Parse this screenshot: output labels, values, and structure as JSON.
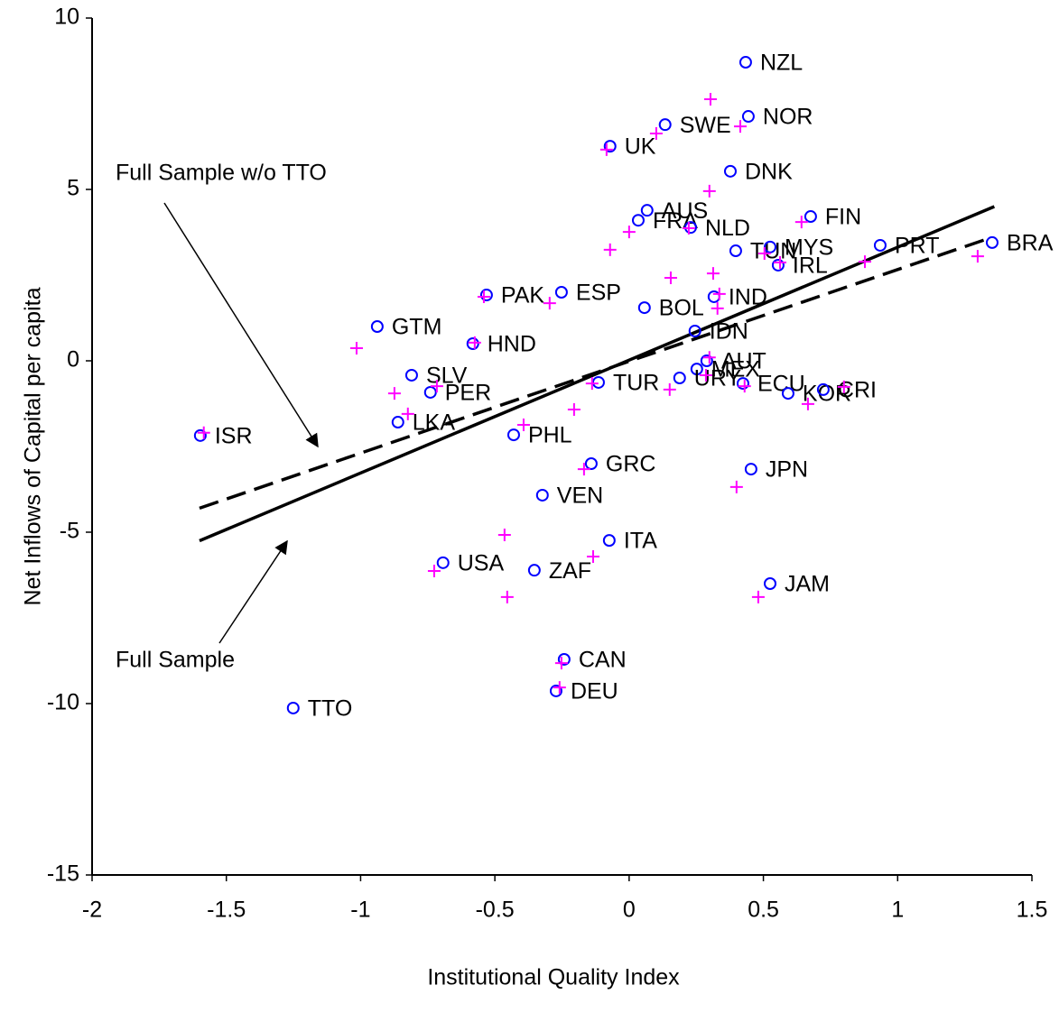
{
  "chart_data": {
    "type": "scatter",
    "x_label": "Institutional Quality Index",
    "y_label": "Net Inflows of Capital per capita",
    "xlim": [
      -2,
      1.5
    ],
    "ylim": [
      -15,
      10
    ],
    "xticks": [
      -2,
      -1.5,
      -1,
      -0.5,
      0,
      0.5,
      1,
      1.5
    ],
    "yticks": [
      -15,
      -10,
      -5,
      0,
      5,
      10
    ],
    "grid": false,
    "series": [
      {
        "color": "#0000ff",
        "marker": "circle",
        "labels": [
          "NZL",
          "NOR",
          "SWE",
          "UK",
          "DNK",
          "AUS",
          "FRA",
          "NLD",
          "FIN",
          "TUN",
          "MYS",
          "IRL",
          "PRT",
          "BRA",
          "PAK",
          "ESP",
          "BOL",
          "IND",
          "GTM",
          "HND",
          "IDN",
          "AUT",
          "MEX",
          "URY",
          "ECU",
          "KOR",
          "CRI",
          "TUR",
          "SLV",
          "PER",
          "LKA",
          "ISR",
          "PHL",
          "GRC",
          "JPN",
          "VEN",
          "ITA",
          "USA",
          "ZAF",
          "JAM",
          "CAN",
          "DEU",
          "TTO"
        ],
        "x": [
          0.434,
          0.444,
          0.134,
          -0.071,
          0.377,
          0.067,
          0.034,
          0.229,
          0.676,
          0.397,
          0.525,
          0.555,
          0.935,
          1.352,
          -0.531,
          -0.252,
          0.057,
          0.316,
          -0.938,
          -0.582,
          0.245,
          0.289,
          0.252,
          0.188,
          0.424,
          0.592,
          0.723,
          -0.114,
          -0.81,
          -0.74,
          -0.861,
          -1.597,
          -0.43,
          -0.141,
          0.454,
          -0.323,
          -0.074,
          -0.693,
          -0.353,
          0.525,
          -0.242,
          -0.272,
          -1.251
        ],
        "values": [
          8.71,
          7.13,
          6.89,
          6.26,
          5.53,
          4.39,
          4.1,
          3.89,
          4.21,
          3.21,
          3.32,
          2.79,
          3.37,
          3.45,
          1.92,
          2.0,
          1.55,
          1.87,
          1.0,
          0.5,
          0.87,
          0.0,
          -0.24,
          -0.5,
          -0.66,
          -0.95,
          -0.84,
          -0.63,
          -0.42,
          -0.92,
          -1.79,
          -2.18,
          -2.16,
          -3.0,
          -3.16,
          -3.92,
          -5.24,
          -5.89,
          -6.11,
          -6.5,
          -8.71,
          -9.63,
          -10.13
        ]
      },
      {
        "color": "#ff00ff",
        "marker": "plus",
        "x": [
          0.303,
          0.414,
          0.101,
          -0.084,
          0.299,
          0.642,
          0,
          0.222,
          -0.071,
          0.504,
          0.562,
          0.878,
          1.298,
          0.155,
          0.313,
          0.336,
          0.329,
          -0.296,
          -0.541,
          -1.015,
          -0.575,
          0.299,
          0.286,
          0.151,
          -0.138,
          -0.874,
          -0.824,
          -0.716,
          -0.393,
          -0.205,
          -1.584,
          -0.168,
          0.4,
          -0.464,
          -0.134,
          -0.726,
          -0.454,
          0.481,
          -0.252,
          -0.259,
          0.666,
          0.8,
          0.43
        ],
        "values": [
          7.63,
          6.84,
          6.63,
          6.16,
          4.95,
          4.05,
          3.76,
          3.87,
          3.24,
          3.13,
          2.87,
          2.89,
          3.05,
          2.42,
          2.55,
          1.95,
          1.53,
          1.68,
          1.87,
          0.37,
          0.53,
          0.1,
          -0.42,
          -0.84,
          -0.66,
          -0.95,
          -1.55,
          -0.74,
          -1.87,
          -1.42,
          -2.1,
          -3.16,
          -3.68,
          -5.08,
          -5.71,
          -6.13,
          -6.89,
          -6.89,
          -8.82,
          -9.53,
          -1.26,
          -0.76,
          -0.74
        ]
      }
    ],
    "fits": [
      {
        "label": "Full Sample w/o TTO",
        "dash": true,
        "color": "#000000",
        "x": [
          -1.6,
          1.35
        ],
        "values": [
          -4.3,
          3.6
        ]
      },
      {
        "label": "Full Sample",
        "dash": false,
        "color": "#000000",
        "x": [
          -1.6,
          1.36
        ],
        "values": [
          -5.25,
          4.5
        ]
      }
    ]
  }
}
